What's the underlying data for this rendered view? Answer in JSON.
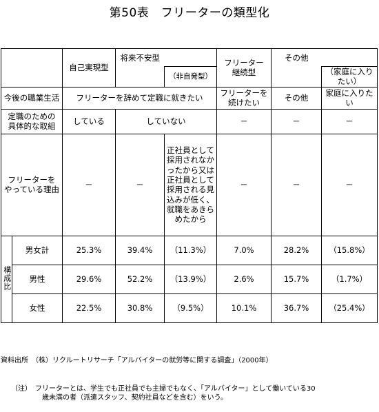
{
  "title": "第50表　フリーターの類型化",
  "header": {
    "c1": "自己実現型",
    "c2": "将来不安型",
    "c2_sub": "（非自発型）",
    "c3": "フリーター\n継続型",
    "c4": "その他",
    "c4_sub": "（家庭に入りたい）"
  },
  "rows": {
    "life_label": "今後の職業生活",
    "life_c12": "フリーターを辞めて定職に就きたい",
    "life_c3": "フリーターを\n続けたい",
    "life_c4": "その他",
    "life_c4b": "家庭に入りたい",
    "effort_label": "定職のための\n具体的な取組",
    "effort_c1": "している",
    "effort_c2": "していない",
    "effort_c3": "－",
    "effort_c4": "－",
    "effort_c4b": "－",
    "reason_label": "フリーターを\nやっている理由",
    "reason_c1": "－",
    "reason_c2": "－",
    "reason_c2b": "正社員として採用されなかったから又は正社員として採用される見込みが低く、就職をあきらめたから",
    "reason_c3": "－",
    "reason_c4": "－",
    "reason_c4b": "－"
  },
  "composition": {
    "side_label": "構成比",
    "rows": [
      {
        "label": "男女計",
        "values": [
          "25.3%",
          "39.4%",
          "（11.3%）",
          "7.0%",
          "28.2%",
          "（15.8%）"
        ]
      },
      {
        "label": "男性",
        "values": [
          "29.6%",
          "52.2%",
          "（13.9%）",
          "2.6%",
          "15.7%",
          "（1.7%）"
        ]
      },
      {
        "label": "女性",
        "values": [
          "22.5%",
          "30.8%",
          "（9.5%）",
          "10.1%",
          "36.7%",
          "（25.4%）"
        ]
      }
    ]
  },
  "footer": {
    "source": "資料出所　（株）リクルートリサーチ「アルバイターの就労等に関する調査」（2000年）",
    "note": "　　（注）　フリーターとは、学生でも正社員でも主婦でもなく、「アルバイター」として働いている30\n　　　　　　歳未満の者（派遣スタッフ、契約社員などを含む）をいう。"
  }
}
